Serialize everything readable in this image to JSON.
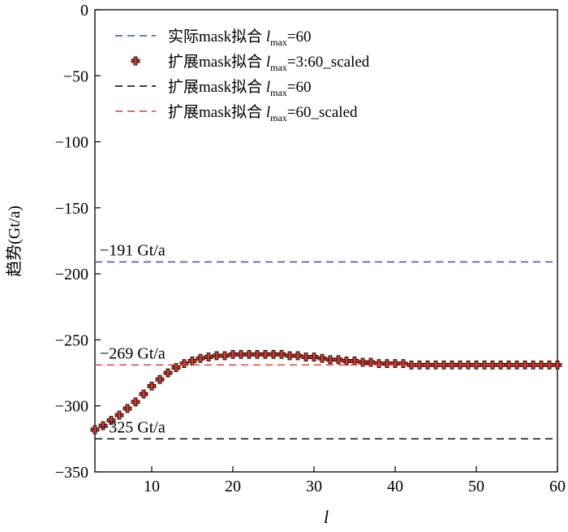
{
  "chart_data": {
    "type": "line",
    "xlabel": "l",
    "ylabel": "趋势(Gt/a)",
    "xlim": [
      3,
      60
    ],
    "ylim": [
      -350,
      0
    ],
    "x_ticks": [
      10,
      20,
      30,
      40,
      50,
      60
    ],
    "y_ticks": [
      0,
      -50,
      -100,
      -150,
      -200,
      -250,
      -300,
      -350
    ],
    "x_tick_labels": [
      "10",
      "20",
      "30",
      "40",
      "50",
      "60"
    ],
    "y_tick_labels": [
      "0",
      "−50",
      "−100",
      "−150",
      "−200",
      "−250",
      "−300",
      "−350"
    ],
    "grid": false,
    "legend_position": "top-left",
    "legend": [
      {
        "prefix": "实际mask拟合 ",
        "lsym": "l",
        "sub": "max",
        "suffix": "=60",
        "style": "dashed",
        "color": "#3d4fa8"
      },
      {
        "prefix": "扩展mask拟合 ",
        "lsym": "l",
        "sub": "max",
        "suffix": "=3:60_scaled",
        "style": "plus",
        "color": "#d73a2c"
      },
      {
        "prefix": "扩展mask拟合 ",
        "lsym": "l",
        "sub": "max",
        "suffix": "=60",
        "style": "dashed",
        "color": "#000000"
      },
      {
        "prefix": "扩展mask拟合 ",
        "lsym": "l",
        "sub": "max",
        "suffix": "=60_scaled",
        "style": "dashed",
        "color": "#e03a2c"
      }
    ],
    "series": [
      {
        "style": "dashed",
        "color": "#3d4fa8",
        "value": -191
      },
      {
        "style": "plus",
        "color": "#d73a2c",
        "x": [
          3,
          4,
          5,
          6,
          7,
          8,
          9,
          10,
          11,
          12,
          13,
          14,
          15,
          16,
          17,
          18,
          19,
          20,
          21,
          22,
          23,
          24,
          25,
          26,
          27,
          28,
          29,
          30,
          31,
          32,
          33,
          34,
          35,
          36,
          37,
          38,
          39,
          40,
          41,
          42,
          43,
          44,
          45,
          46,
          47,
          48,
          49,
          50,
          51,
          52,
          53,
          54,
          55,
          56,
          57,
          58,
          59,
          60
        ],
        "y": [
          -318,
          -315,
          -311,
          -307,
          -302,
          -297,
          -291,
          -285,
          -280,
          -275,
          -271,
          -268,
          -266,
          -264,
          -263,
          -262,
          -262,
          -261,
          -261,
          -261,
          -261,
          -261,
          -261,
          -261,
          -262,
          -262,
          -263,
          -263,
          -264,
          -265,
          -265,
          -266,
          -266,
          -267,
          -267,
          -268,
          -268,
          -268,
          -268,
          -269,
          -269,
          -269,
          -269,
          -269,
          -269,
          -269,
          -269,
          -269,
          -269,
          -269,
          -269,
          -269,
          -269,
          -269,
          -269,
          -269,
          -269,
          -269
        ]
      },
      {
        "style": "dashed",
        "color": "#000000",
        "value": -325
      },
      {
        "style": "dashed",
        "color": "#e03a2c",
        "value": -269
      }
    ],
    "annotations": [
      {
        "text": "−191 Gt/a",
        "y": -191
      },
      {
        "text": "−269 Gt/a",
        "y": -269
      },
      {
        "text": "−325 Gt/a",
        "y": -325
      }
    ]
  }
}
